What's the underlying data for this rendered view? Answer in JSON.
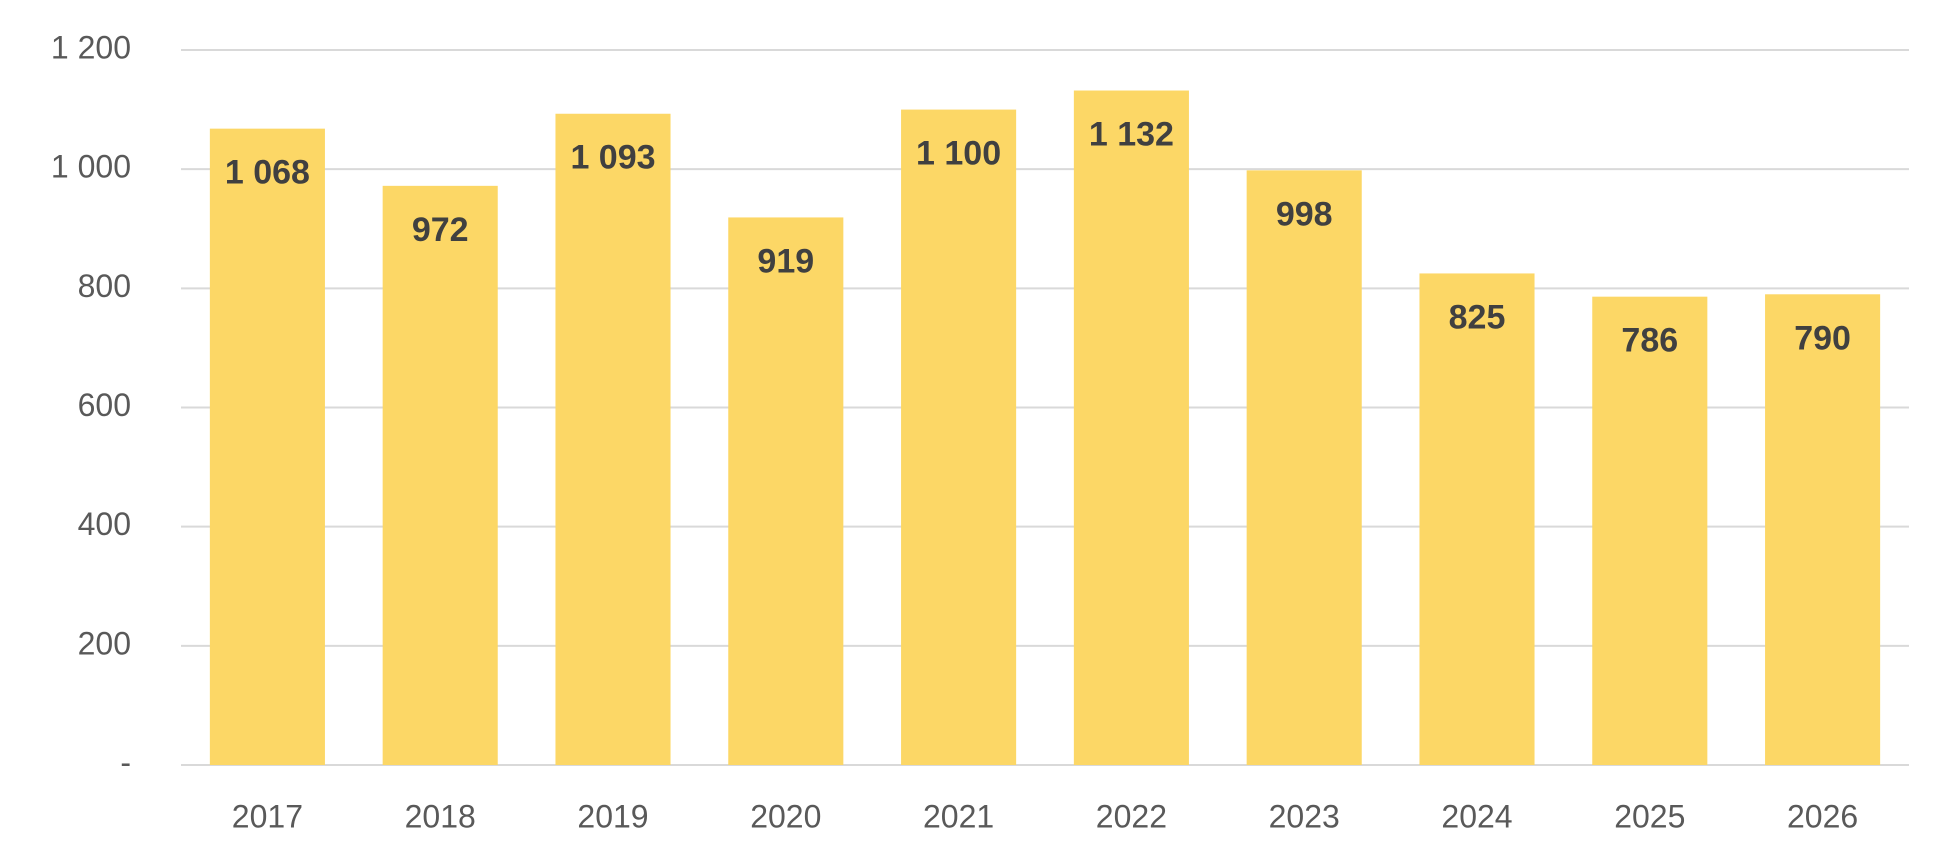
{
  "chart_data": {
    "type": "bar",
    "categories": [
      "2017",
      "2018",
      "2019",
      "2020",
      "2021",
      "2022",
      "2023",
      "2024",
      "2025",
      "2026"
    ],
    "values": [
      1068,
      972,
      1093,
      919,
      1100,
      1132,
      998,
      825,
      786,
      790
    ],
    "value_labels": [
      "1 068",
      "972",
      "1 093",
      "919",
      "1 100",
      "1 132",
      "998",
      "825",
      "786",
      "790"
    ],
    "color": "#fcd766",
    "ylim": [
      0,
      1200
    ],
    "yticks": [
      {
        "value": 0,
        "label": "-"
      },
      200,
      400,
      600,
      800,
      {
        "value": 1000,
        "label": "1 000"
      },
      {
        "value": 1200,
        "label": "1 200"
      }
    ],
    "grid": true
  }
}
